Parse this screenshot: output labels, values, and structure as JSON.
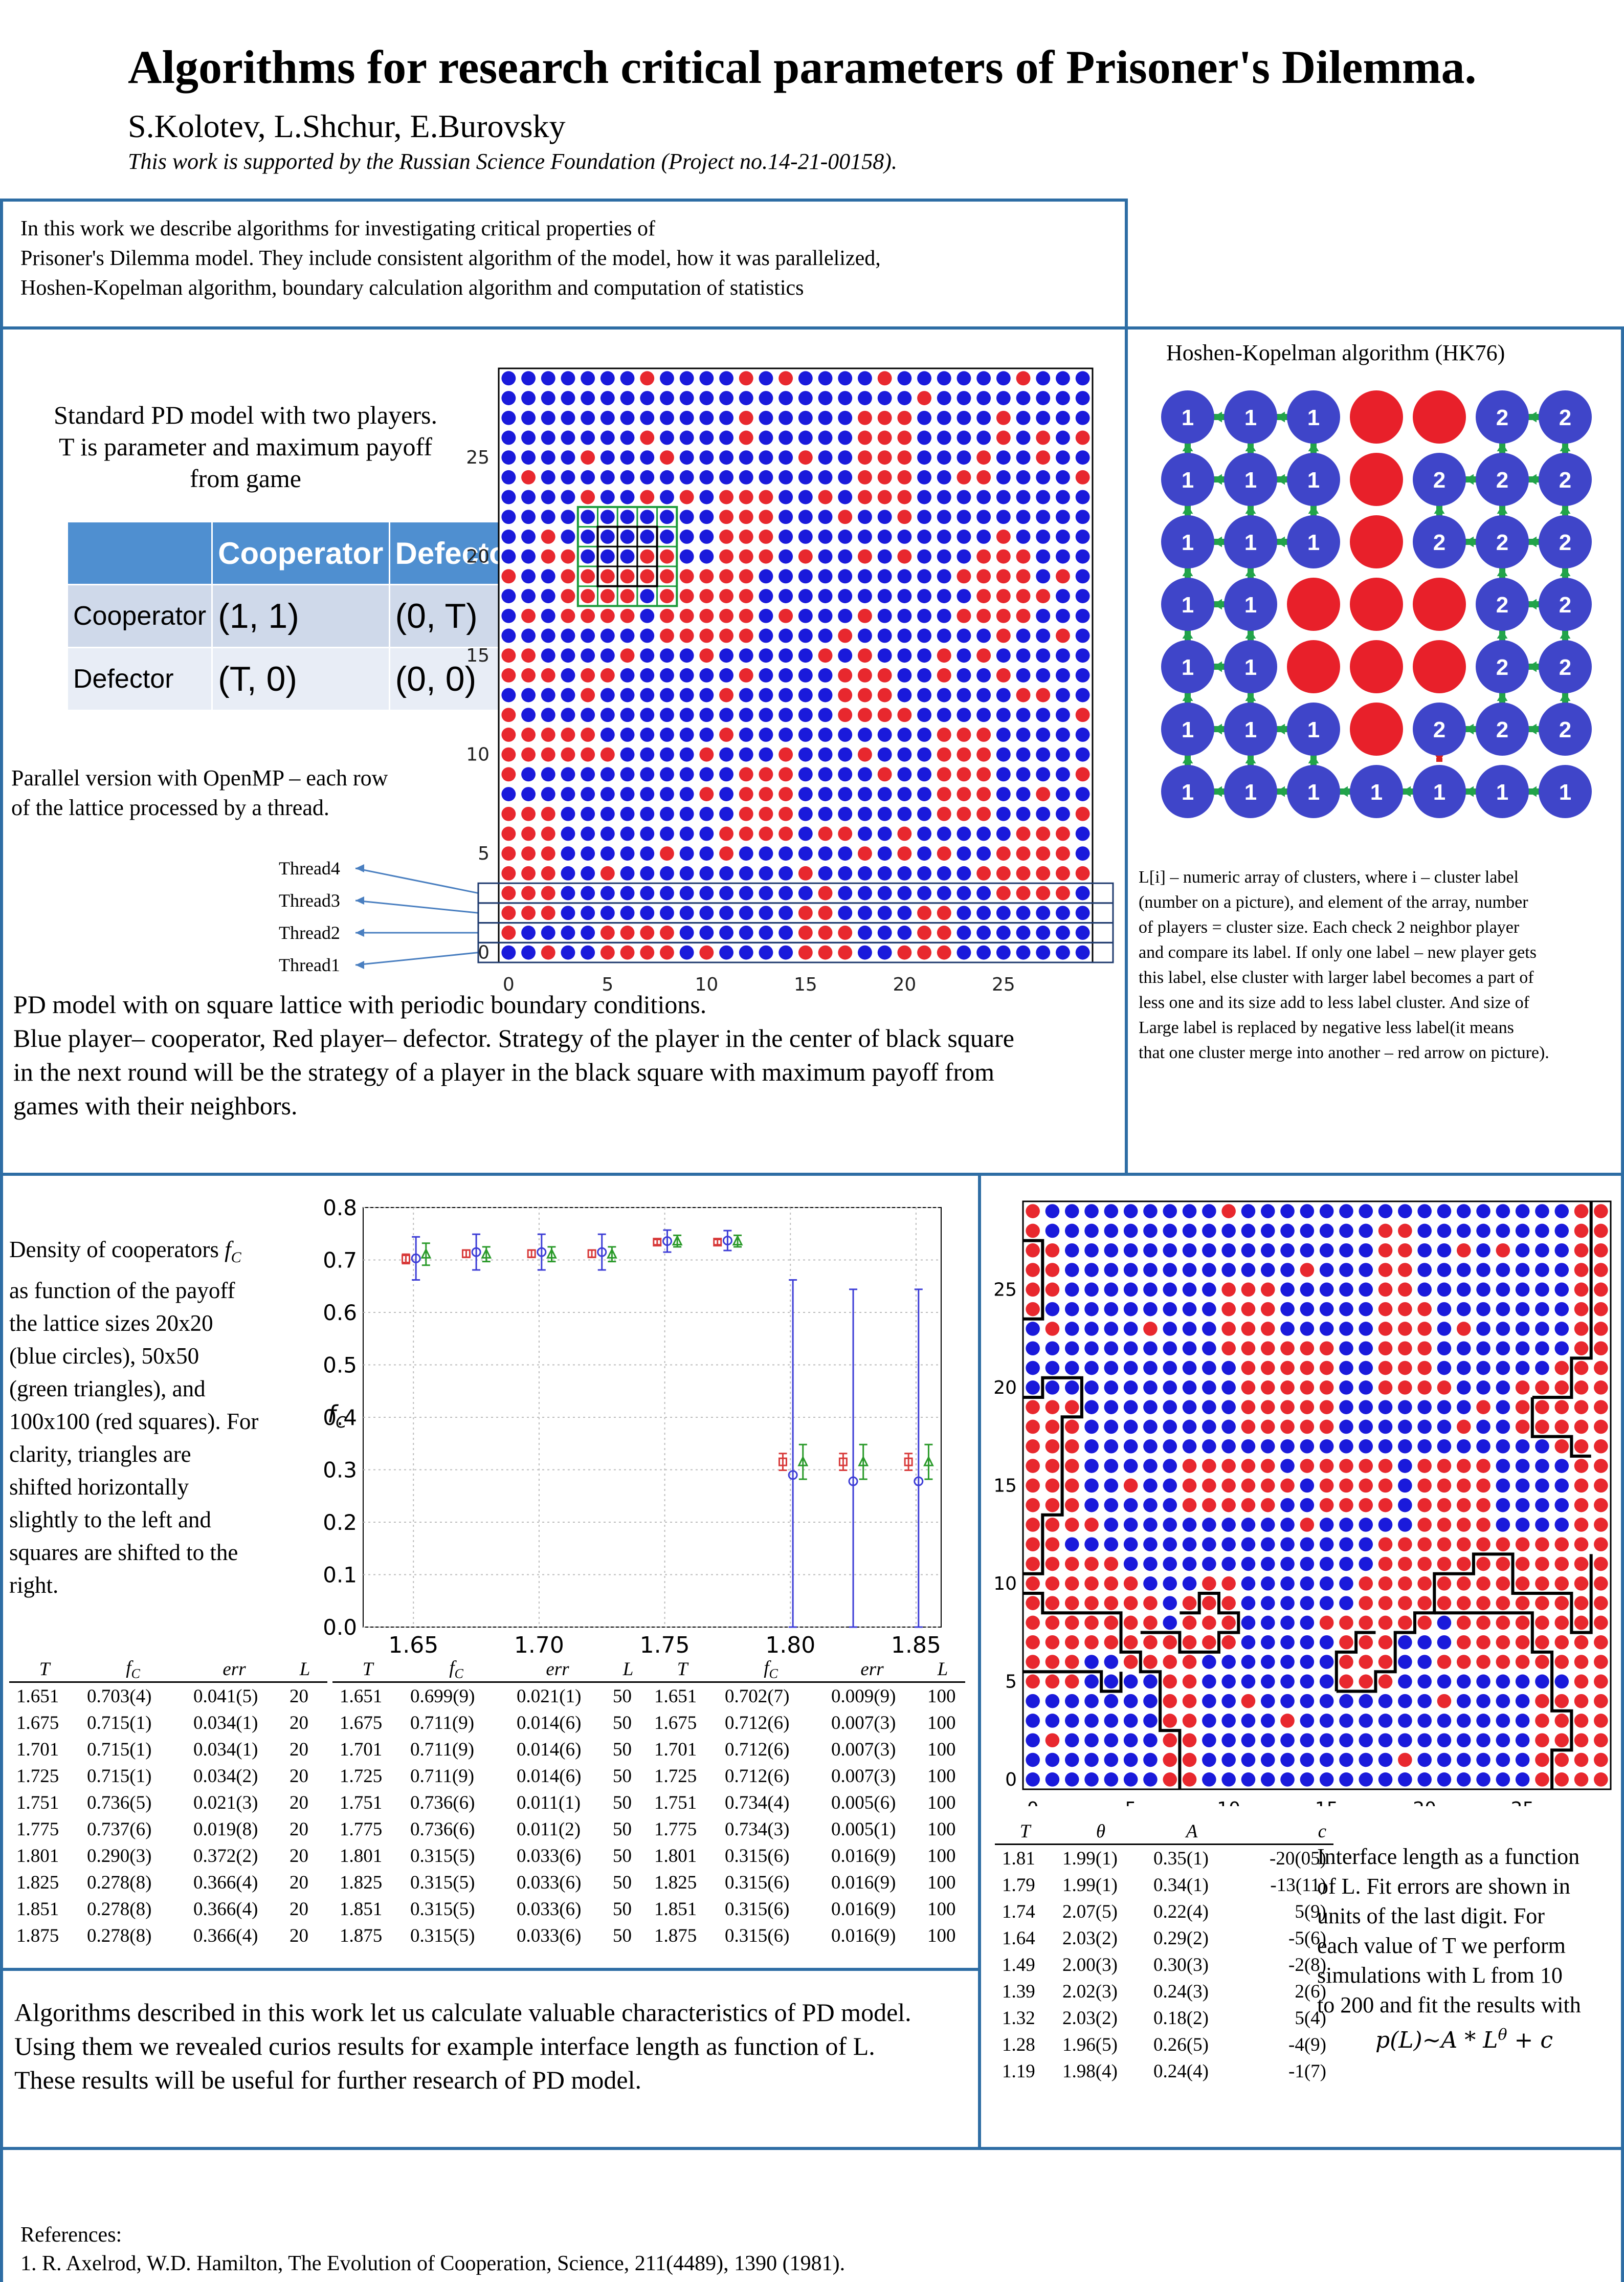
{
  "header": {
    "title": "Algorithms for research critical parameters of Prisoner's Dilemma.",
    "authors": "S.Kolotev, L.Shchur, E.Burovsky",
    "support": "This work is supported by the Russian Science Foundation (Project no.14-21-00158)."
  },
  "intro": {
    "line1": "In this work we describe algorithms for investigating critical properties of",
    "line2": "Prisoner's Dilemma model. They include consistent algorithm of the model, how it was parallelized,",
    "line3": "Hoshen-Kopelman algorithm, boundary calculation algorithm and computation of statistics"
  },
  "model": {
    "standard_line1": "Standard PD model with two players.",
    "standard_line2": "T is parameter and maximum payoff",
    "standard_line3": "from game",
    "table": {
      "header": [
        "",
        "Cooperator",
        "Defector"
      ],
      "rows": [
        {
          "player": "Cooperator",
          "c": "(1, 1)",
          "d": "(0, T)"
        },
        {
          "player": "Defector",
          "c": "(T, 0)",
          "d": "(0, 0)"
        }
      ]
    },
    "parallel_line1": "Parallel version with OpenMP – each row",
    "parallel_line2": "of the lattice processed by a thread.",
    "threads": [
      "Thread4",
      "Thread3",
      "Thread2",
      "Thread1"
    ],
    "lattice_ticks": [
      "0",
      "5",
      "10",
      "15",
      "20",
      "25"
    ],
    "desc_line1": "PD model with on square lattice with periodic boundary conditions.",
    "desc_line2": "Blue player– cooperator, Red player– defector. Strategy of the player in the center of black square",
    "desc_line3": "in the next round will be the strategy of a player in the black square with maximum payoff from",
    "desc_line4": "games with their neighbors.",
    "colors": {
      "cooperator": "#1a1adb",
      "defector": "#e8282e"
    }
  },
  "hk": {
    "title": "Hoshen-Kopelman algorithm (HK76)",
    "grid": [
      [
        "1",
        "1",
        "1",
        "R",
        "R",
        "2",
        "2"
      ],
      [
        "1",
        "1",
        "1",
        "R",
        "2",
        "2",
        "2"
      ],
      [
        "1",
        "1",
        "1",
        "R",
        "2",
        "2",
        "2"
      ],
      [
        "1",
        "1",
        "R",
        "R",
        "R",
        "2",
        "2"
      ],
      [
        "1",
        "1",
        "R",
        "R",
        "R",
        "2",
        "2"
      ],
      [
        "1",
        "1",
        "1",
        "R",
        "2",
        "2",
        "2"
      ],
      [
        "1",
        "1",
        "1",
        "1",
        "1",
        "1",
        "1"
      ]
    ],
    "desc_line1": "L[i] – numeric array of clusters, where i – cluster label",
    "desc_line2": "(number on a picture), and element of  the array, number",
    "desc_line3": "of players = cluster size. Each check 2 neighbor player",
    "desc_line4": "and compare its label. If only one label – new player gets",
    "desc_line5": "this label, else cluster with larger label becomes a part of",
    "desc_line6": "less one and its size add to less label cluster. And size of",
    "desc_line7": "Large label is replaced by negative less label(it means",
    "desc_line8": "that one cluster merge into another – red arrow on picture)."
  },
  "density": {
    "text_line1": "Density  of  cooperators",
    "text_fc": "fC",
    "text_rest": [
      "as  function  of  the  payoff",
      "the  lattice  sizes  20x20",
      "(blue      circles),      50x50",
      "(green    triangles),     and",
      "100x100 (red squares). For",
      "clarity,      triangles      are",
      "shifted                horizontally",
      "slightly  to  the  left  and",
      "squares  are  shifted  to  the",
      "right."
    ],
    "tables": [
      {
        "rows": [
          [
            "1.651",
            "0.703(4)",
            "0.041(5)",
            "20"
          ],
          [
            "1.675",
            "0.715(1)",
            "0.034(1)",
            "20"
          ],
          [
            "1.701",
            "0.715(1)",
            "0.034(1)",
            "20"
          ],
          [
            "1.725",
            "0.715(1)",
            "0.034(2)",
            "20"
          ],
          [
            "1.751",
            "0.736(5)",
            "0.021(3)",
            "20"
          ],
          [
            "1.775",
            "0.737(6)",
            "0.019(8)",
            "20"
          ],
          [
            "1.801",
            "0.290(3)",
            "0.372(2)",
            "20"
          ],
          [
            "1.825",
            "0.278(8)",
            "0.366(4)",
            "20"
          ],
          [
            "1.851",
            "0.278(8)",
            "0.366(4)",
            "20"
          ],
          [
            "1.875",
            "0.278(8)",
            "0.366(4)",
            "20"
          ]
        ]
      },
      {
        "rows": [
          [
            "1.651",
            "0.699(9)",
            "0.021(1)",
            "50"
          ],
          [
            "1.675",
            "0.711(9)",
            "0.014(6)",
            "50"
          ],
          [
            "1.701",
            "0.711(9)",
            "0.014(6)",
            "50"
          ],
          [
            "1.725",
            "0.711(9)",
            "0.014(6)",
            "50"
          ],
          [
            "1.751",
            "0.736(6)",
            "0.011(1)",
            "50"
          ],
          [
            "1.775",
            "0.736(6)",
            "0.011(2)",
            "50"
          ],
          [
            "1.801",
            "0.315(5)",
            "0.033(6)",
            "50"
          ],
          [
            "1.825",
            "0.315(5)",
            "0.033(6)",
            "50"
          ],
          [
            "1.851",
            "0.315(5)",
            "0.033(6)",
            "50"
          ],
          [
            "1.875",
            "0.315(5)",
            "0.033(6)",
            "50"
          ]
        ]
      },
      {
        "rows": [
          [
            "1.651",
            "0.702(7)",
            "0.009(9)",
            "100"
          ],
          [
            "1.675",
            "0.712(6)",
            "0.007(3)",
            "100"
          ],
          [
            "1.701",
            "0.712(6)",
            "0.007(3)",
            "100"
          ],
          [
            "1.725",
            "0.712(6)",
            "0.007(3)",
            "100"
          ],
          [
            "1.751",
            "0.734(4)",
            "0.005(6)",
            "100"
          ],
          [
            "1.775",
            "0.734(3)",
            "0.005(1)",
            "100"
          ],
          [
            "1.801",
            "0.315(6)",
            "0.016(9)",
            "100"
          ],
          [
            "1.825",
            "0.315(6)",
            "0.016(9)",
            "100"
          ],
          [
            "1.851",
            "0.315(6)",
            "0.016(9)",
            "100"
          ],
          [
            "1.875",
            "0.315(6)",
            "0.016(9)",
            "100"
          ]
        ]
      }
    ],
    "table_headers": [
      "T",
      "fC",
      "err",
      "L"
    ]
  },
  "chart_data": {
    "type": "scatter",
    "ylabel": "fC",
    "xlim": [
      1.63,
      1.86
    ],
    "ylim": [
      0.0,
      0.8
    ],
    "xticks": [
      "1.65",
      "1.70",
      "1.75",
      "1.80",
      "1.85"
    ],
    "yticks": [
      "0.0",
      "0.1",
      "0.2",
      "0.3",
      "0.4",
      "0.5",
      "0.6",
      "0.7",
      "0.8"
    ],
    "grid": true,
    "series": [
      {
        "marker": "circle",
        "color": "#3d3dd6",
        "x": [
          1.651,
          1.675,
          1.701,
          1.725,
          1.751,
          1.775,
          1.801,
          1.825,
          1.851
        ],
        "y": [
          0.703,
          0.715,
          0.715,
          0.715,
          0.736,
          0.737,
          0.29,
          0.278,
          0.278
        ],
        "err": [
          0.041,
          0.034,
          0.034,
          0.034,
          0.021,
          0.019,
          0.372,
          0.366,
          0.366
        ]
      },
      {
        "marker": "triangle",
        "color": "#2a9a2a",
        "x": [
          1.655,
          1.679,
          1.705,
          1.729,
          1.755,
          1.779,
          1.805,
          1.829,
          1.855
        ],
        "y": [
          0.711,
          0.711,
          0.711,
          0.711,
          0.736,
          0.736,
          0.315,
          0.315,
          0.315
        ],
        "err": [
          0.021,
          0.014,
          0.014,
          0.014,
          0.011,
          0.011,
          0.033,
          0.033,
          0.033
        ]
      },
      {
        "marker": "square",
        "color": "#d83a3a",
        "x": [
          1.647,
          1.671,
          1.697,
          1.721,
          1.747,
          1.771,
          1.797,
          1.821,
          1.847
        ],
        "y": [
          0.702,
          0.712,
          0.712,
          0.712,
          0.734,
          0.734,
          0.315,
          0.315,
          0.315
        ],
        "err": [
          0.009,
          0.007,
          0.007,
          0.007,
          0.005,
          0.005,
          0.016,
          0.016,
          0.016
        ]
      }
    ]
  },
  "interface": {
    "ticks": [
      "0",
      "5",
      "10",
      "15",
      "20",
      "25"
    ],
    "table_headers": [
      "T",
      "θ",
      "A",
      "c"
    ],
    "rows": [
      [
        "1.81",
        "1.99(1)",
        "0.35(1)",
        "-20(05)"
      ],
      [
        "1.79",
        "1.99(1)",
        "0.34(1)",
        "-13(11)"
      ],
      [
        "1.74",
        "2.07(5)",
        "0.22(4)",
        "5(9)"
      ],
      [
        "1.64",
        "2.03(2)",
        "0.29(2)",
        "-5(6)"
      ],
      [
        "1.49",
        "2.00(3)",
        "0.30(3)",
        "-2(8)"
      ],
      [
        "1.39",
        "2.02(3)",
        "0.24(3)",
        "2(6)"
      ],
      [
        "1.32",
        "2.03(2)",
        "0.18(2)",
        "5(4)"
      ],
      [
        "1.28",
        "1.96(5)",
        "0.26(5)",
        "-4(9)"
      ],
      [
        "1.19",
        "1.98(4)",
        "0.24(4)",
        "-1(7)"
      ]
    ],
    "text": [
      "Interface length as a function",
      "of L. Fit errors are shown in",
      "units   of   the   last   digit.   For",
      "each value of T we perform",
      "simulations  with  L  from  10",
      "to 200 and fit the results with"
    ],
    "formula": "p(L)~A * L^θ + c"
  },
  "conclusion": {
    "line1": "Algorithms described in this work let us calculate valuable characteristics of PD model.",
    "line2": "Using them we revealed curios results for example interface length as function of L.",
    "line3": "These results will be useful for further research of PD model."
  },
  "references": {
    "heading": "References:",
    "items": [
      "1. R. Axelrod, W.D. Hamilton, The Evolution of Cooperation, Science, 211(4489), 1390 (1981)."
    ]
  }
}
